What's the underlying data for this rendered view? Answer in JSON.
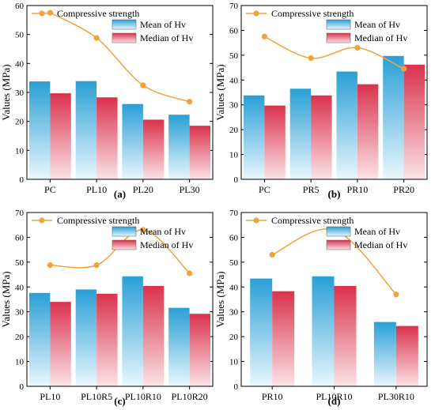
{
  "y_axis_label": "Values (MPa)",
  "legend": {
    "line": "Compressive strength",
    "mean": "Mean of Hv",
    "median": "Median of Hv"
  },
  "colors": {
    "line": "#f0a33c",
    "marker": "#f0a33c",
    "mean_top": "#2a9fd6",
    "mean_bottom": "#e9f7fd",
    "median_top": "#d9324c",
    "median_bottom": "#fbe3e7"
  },
  "chart_data": [
    {
      "type": "bar",
      "panel_label": "(a)",
      "categories": [
        "PC",
        "PL10",
        "PL20",
        "PL30"
      ],
      "series": [
        {
          "name": "Mean of Hv",
          "values": [
            33.8,
            33.9,
            26.0,
            22.3
          ]
        },
        {
          "name": "Median of Hv",
          "values": [
            29.7,
            28.3,
            20.6,
            18.5
          ]
        },
        {
          "name": "Compressive strength",
          "type": "line",
          "values": [
            57.5,
            48.8,
            32.5,
            26.8
          ]
        }
      ],
      "ylim": [
        0,
        60
      ],
      "yticks": [
        0,
        10,
        20,
        30,
        40,
        50,
        60
      ]
    },
    {
      "type": "bar",
      "panel_label": "(b)",
      "categories": [
        "PC",
        "PR5",
        "PR10",
        "PR20"
      ],
      "series": [
        {
          "name": "Mean of Hv",
          "values": [
            33.8,
            36.5,
            43.4,
            49.7
          ]
        },
        {
          "name": "Median of Hv",
          "values": [
            29.7,
            33.8,
            38.3,
            46.2
          ]
        },
        {
          "name": "Compressive strength",
          "type": "line",
          "values": [
            57.5,
            48.8,
            53.0,
            44.5
          ]
        }
      ],
      "ylim": [
        0,
        70
      ],
      "yticks": [
        0,
        10,
        20,
        30,
        40,
        50,
        60,
        70
      ]
    },
    {
      "type": "bar",
      "panel_label": "(c)",
      "categories": [
        "PL10",
        "PL10R5",
        "PL10R10",
        "PL10R20"
      ],
      "series": [
        {
          "name": "Mean of Hv",
          "values": [
            37.6,
            39.0,
            44.3,
            31.6
          ]
        },
        {
          "name": "Median of Hv",
          "values": [
            34.0,
            37.3,
            40.4,
            29.2
          ]
        },
        {
          "name": "Compressive strength",
          "type": "line",
          "values": [
            48.8,
            48.8,
            63.0,
            45.5
          ]
        }
      ],
      "ylim": [
        0,
        70
      ],
      "yticks": [
        0,
        10,
        20,
        30,
        40,
        50,
        60,
        70
      ]
    },
    {
      "type": "bar",
      "panel_label": "(d)",
      "categories": [
        "PR10",
        "PL10R10",
        "PL30R10"
      ],
      "series": [
        {
          "name": "Mean of Hv",
          "values": [
            43.4,
            44.3,
            25.9
          ]
        },
        {
          "name": "Median of Hv",
          "values": [
            38.3,
            40.4,
            24.3
          ]
        },
        {
          "name": "Compressive strength",
          "type": "line",
          "values": [
            53.0,
            63.0,
            37.0
          ]
        }
      ],
      "ylim": [
        0,
        70
      ],
      "yticks": [
        0,
        10,
        20,
        30,
        40,
        50,
        60,
        70
      ]
    }
  ]
}
